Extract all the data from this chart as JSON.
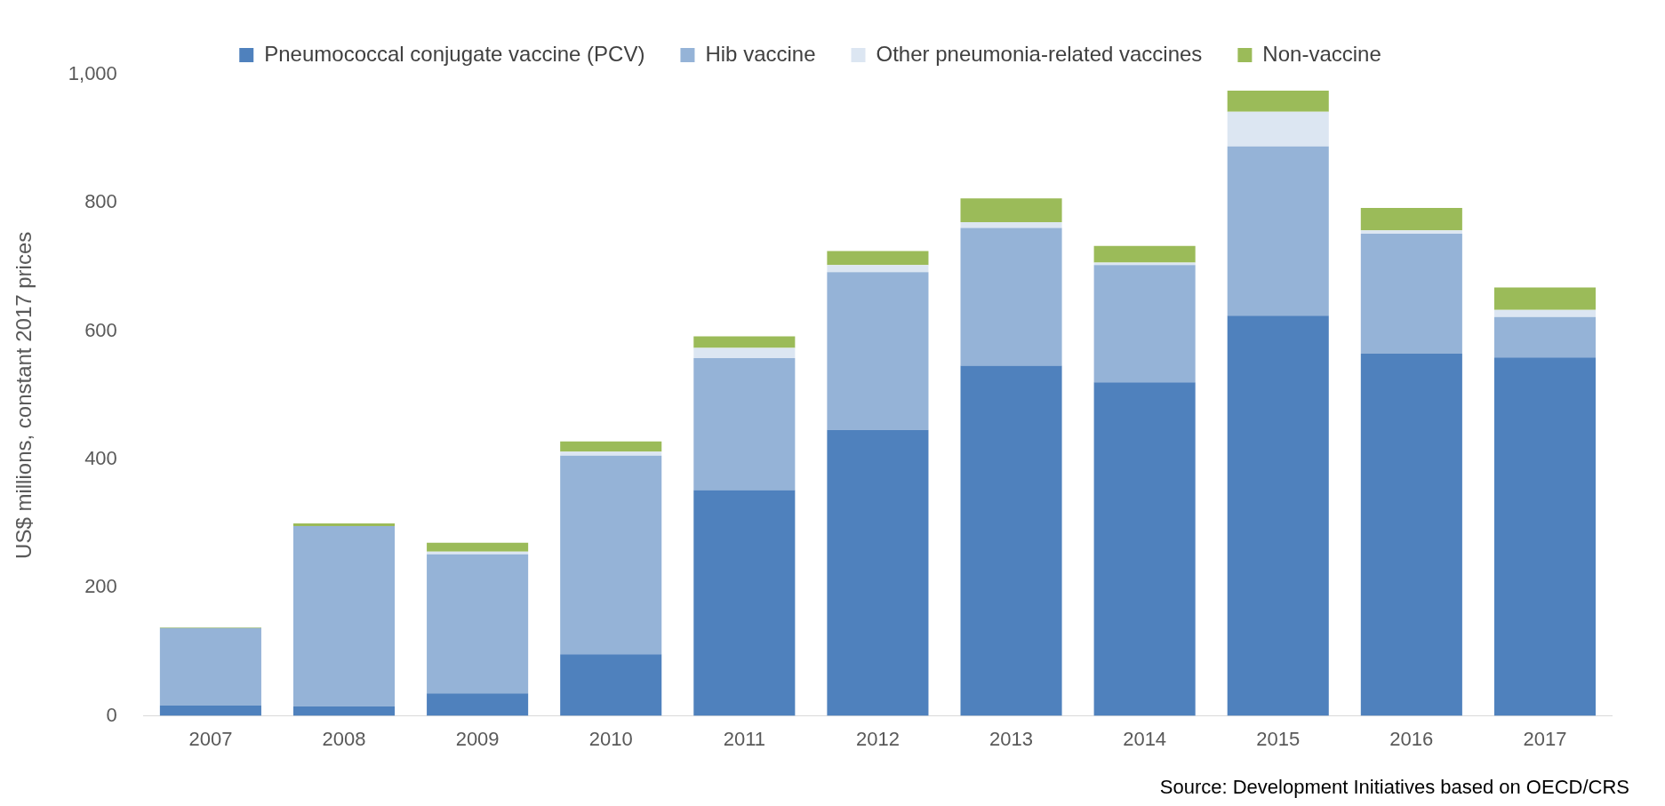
{
  "chart_data": {
    "type": "bar",
    "stacked": true,
    "ylabel": "US$ millions, constant 2017 prices",
    "categories": [
      "2007",
      "2008",
      "2009",
      "2010",
      "2011",
      "2012",
      "2013",
      "2014",
      "2015",
      "2016",
      "2017"
    ],
    "series": [
      {
        "name": "Pneumococcal conjugate vaccine (PCV)",
        "color": "#4f81bd",
        "values": [
          16,
          15,
          35,
          96,
          352,
          446,
          546,
          520,
          624,
          565,
          559
        ]
      },
      {
        "name": "Hib vaccine",
        "color": "#95b3d7",
        "values": [
          121,
          281,
          217,
          310,
          206,
          246,
          215,
          183,
          264,
          187,
          63
        ]
      },
      {
        "name": "Other pneumonia-related vaccines",
        "color": "#dce6f2",
        "values": [
          0,
          0,
          4,
          6,
          16,
          11,
          9,
          4,
          54,
          5,
          11
        ]
      },
      {
        "name": "Non-vaccine",
        "color": "#9bbb59",
        "values": [
          1,
          4,
          14,
          16,
          18,
          22,
          37,
          26,
          33,
          35,
          35
        ]
      }
    ],
    "ylim": [
      0,
      1000
    ],
    "yticks": [
      0,
      {
        "value": 200,
        "label": "200"
      },
      400,
      600,
      800,
      {
        "value": 1000,
        "label": "1,000"
      }
    ],
    "grid": false,
    "legend": "top",
    "annotations": [
      "Source: Development Initiatives based on OECD/CRS"
    ]
  }
}
